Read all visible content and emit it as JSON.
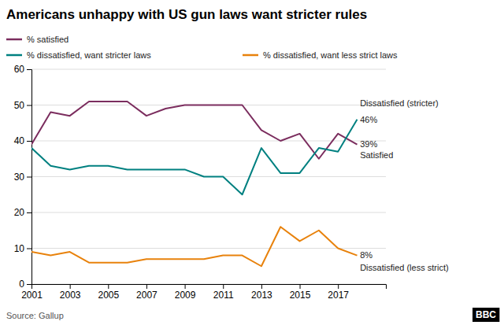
{
  "chart_data": {
    "type": "line",
    "title": "Americans unhappy with US gun laws want stricter rules",
    "x": [
      2001,
      2002,
      2003,
      2004,
      2005,
      2006,
      2007,
      2008,
      2009,
      2010,
      2011,
      2012,
      2013,
      2014,
      2015,
      2016,
      2017,
      2018
    ],
    "series": [
      {
        "name": "% satisfied",
        "color": "#7B2D5E",
        "values": [
          39,
          48,
          47,
          51,
          51,
          51,
          47,
          49,
          50,
          50,
          50,
          50,
          43,
          40,
          42,
          35,
          42,
          39
        ]
      },
      {
        "name": "% dissatisfied, want stricter laws",
        "color": "#008080",
        "values": [
          38,
          33,
          32,
          33,
          33,
          32,
          32,
          32,
          32,
          30,
          30,
          25,
          38,
          31,
          31,
          38,
          37,
          46
        ]
      },
      {
        "name": "% dissatisfied, want less strict laws",
        "color": "#E8820C",
        "values": [
          9,
          8,
          9,
          6,
          6,
          6,
          7,
          7,
          7,
          7,
          8,
          8,
          5,
          16,
          12,
          15,
          10,
          8
        ]
      }
    ],
    "xlim": [
      2001,
      2019.5
    ],
    "xticks": [
      2001,
      2003,
      2005,
      2007,
      2009,
      2011,
      2013,
      2015,
      2017
    ],
    "ylim": [
      0,
      60
    ],
    "yticks": [
      0,
      10,
      20,
      30,
      40,
      50,
      60
    ],
    "grid": "y",
    "legend": "top",
    "annotations": [
      {
        "text": "Dissatisfied (stricter)",
        "x": 2018.15,
        "y": 50.5
      },
      {
        "text": "46%",
        "x": 2018.15,
        "y": 46
      },
      {
        "text": "39%",
        "x": 2018.15,
        "y": 39
      },
      {
        "text": "Satisfied",
        "x": 2018.15,
        "y": 36
      },
      {
        "text": "8%",
        "x": 2018.15,
        "y": 8
      },
      {
        "text": "Dissatisfied (less strict)",
        "x": 2018.15,
        "y": 4.5
      }
    ],
    "source": "Source: Gallup",
    "logo": "BBC"
  }
}
